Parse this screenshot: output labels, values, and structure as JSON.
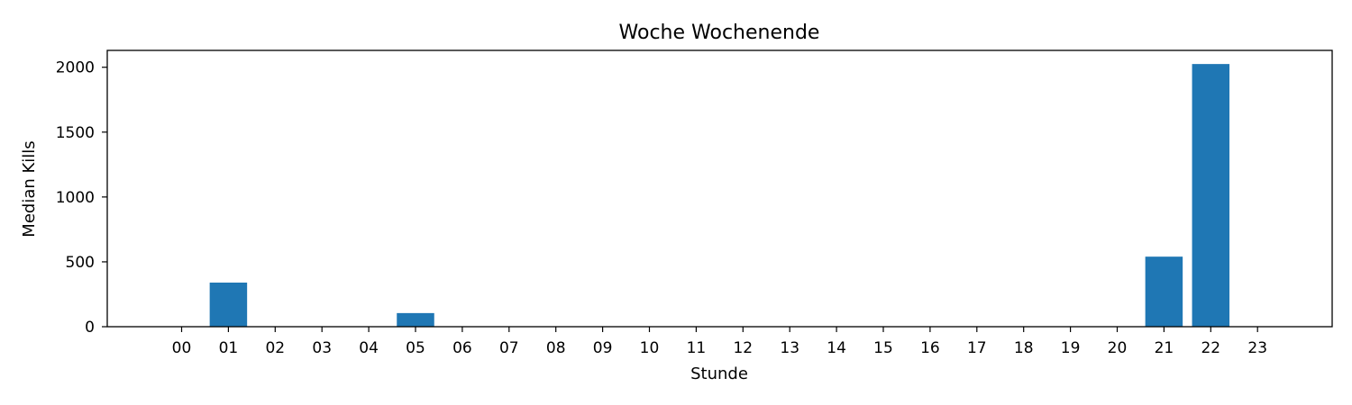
{
  "chart_data": {
    "type": "bar",
    "title": "Woche Wochenende",
    "xlabel": "Stunde",
    "ylabel": "Median Kills",
    "categories": [
      "00",
      "01",
      "02",
      "03",
      "04",
      "05",
      "06",
      "07",
      "08",
      "09",
      "10",
      "11",
      "12",
      "13",
      "14",
      "15",
      "16",
      "17",
      "18",
      "19",
      "20",
      "21",
      "22",
      "23"
    ],
    "values": [
      0,
      340,
      0,
      0,
      0,
      105,
      0,
      0,
      0,
      0,
      0,
      0,
      0,
      0,
      0,
      0,
      0,
      0,
      0,
      0,
      0,
      540,
      2025,
      0
    ],
    "yticks": [
      0,
      500,
      1000,
      1500,
      2000
    ],
    "ylim": [
      0,
      2130
    ],
    "bar_color": "#1f77b4",
    "grid": false,
    "legend": false
  }
}
